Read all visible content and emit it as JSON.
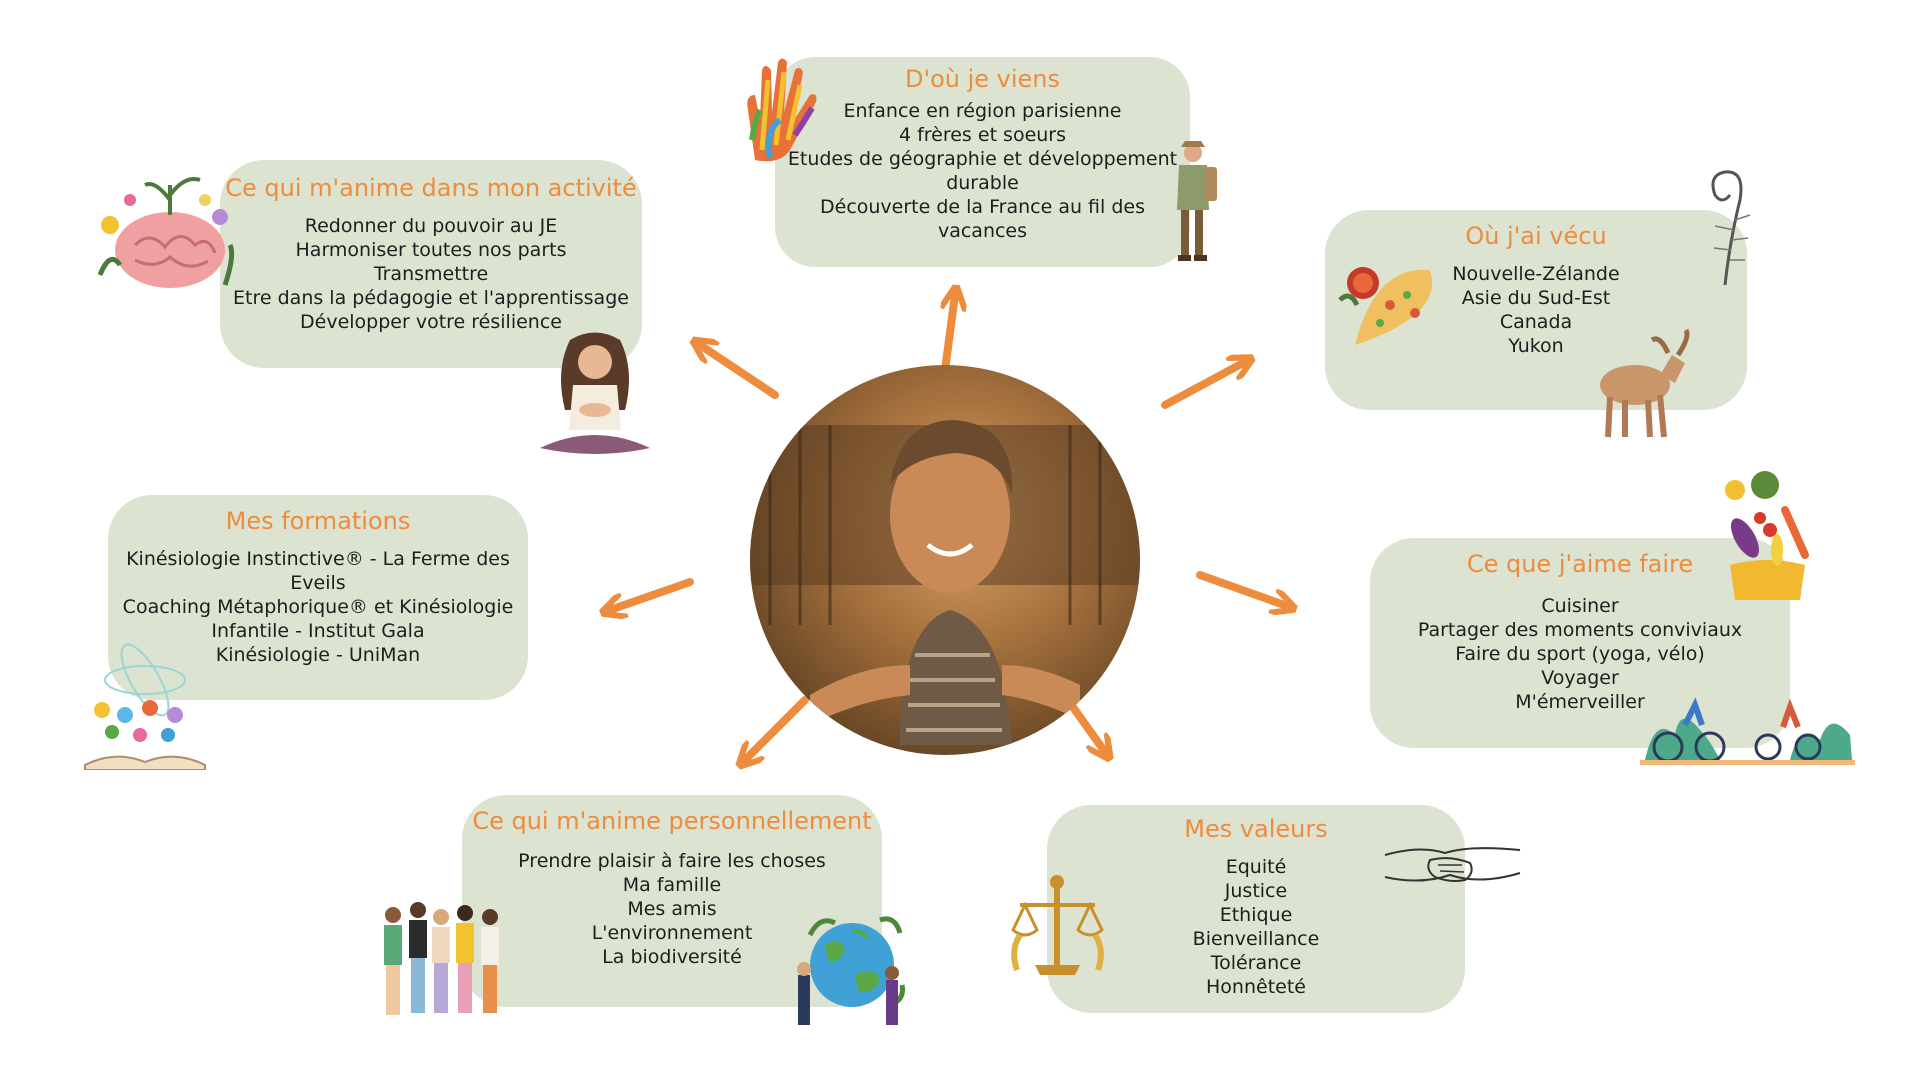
{
  "colors": {
    "card_bg": "#dde3d1",
    "title": "#ec8c3c",
    "arrow": "#ec8c3c",
    "text": "#1e1e1e"
  },
  "center": {
    "photo": "portrait-photo"
  },
  "cards": {
    "origin": {
      "title": "D'où je viens",
      "items": [
        "Enfance en région parisienne",
        "4 frères et soeurs",
        "Etudes de géographie et développement",
        "durable",
        "Découverte de la France au fil des",
        "vacances"
      ]
    },
    "activity": {
      "title": "Ce qui m'anime dans mon activité",
      "items": [
        "Redonner du pouvoir au JE",
        "Harmoniser toutes nos parts",
        "Transmettre",
        "Etre dans la pédagogie et l'apprentissage",
        "Développer votre résilience"
      ]
    },
    "lived": {
      "title": "Où j'ai vécu",
      "items": [
        "Nouvelle-Zélande",
        "Asie du Sud-Est",
        "Canada",
        "Yukon"
      ]
    },
    "training": {
      "title": "Mes formations",
      "items": [
        "Kinésiologie Instinctive® - La Ferme des",
        "Eveils",
        "Coaching Métaphorique® et Kinésiologie",
        "Infantile - Institut Gala",
        "Kinésiologie - UniMan"
      ]
    },
    "hobbies": {
      "title": "Ce que j'aime faire",
      "items": [
        "Cuisiner",
        "Partager des moments conviviaux",
        "Faire du sport (yoga, vélo)",
        "Voyager",
        "M'émerveiller"
      ]
    },
    "personal": {
      "title": "Ce qui m'anime personnellement",
      "items": [
        "Prendre plaisir à faire les choses",
        "Ma famille",
        "Mes amis",
        "L'environnement",
        "La biodiversité"
      ]
    },
    "values": {
      "title": "Mes valeurs",
      "items": [
        "Equité",
        "Justice",
        "Ethique",
        "Bienveillance",
        "Tolérance",
        "Honnêteté"
      ]
    }
  }
}
